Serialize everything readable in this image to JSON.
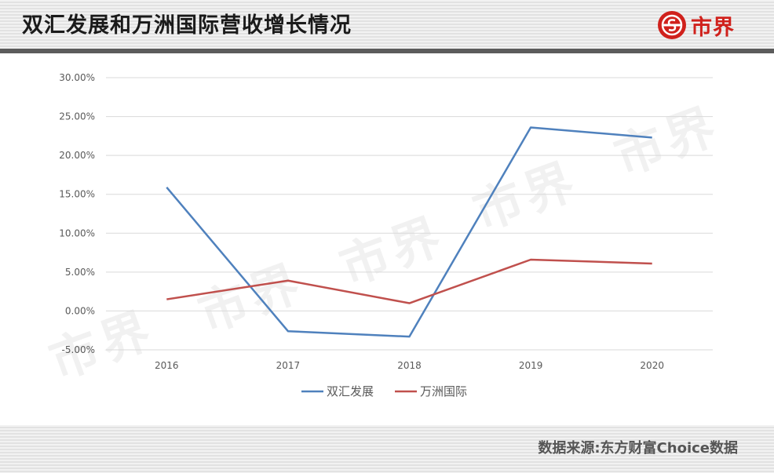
{
  "header": {
    "title": "双汇发展和万洲国际营收增长情况"
  },
  "logo": {
    "text": "市界",
    "icon": "dollar-s-icon",
    "color": "#d0211c"
  },
  "watermark": {
    "text": "市界"
  },
  "footer": {
    "source": "数据来源:东方财富Choice数据"
  },
  "chart_data": {
    "type": "line",
    "categories": [
      "2016",
      "2017",
      "2018",
      "2019",
      "2020"
    ],
    "y_ticks": [
      "30.00%",
      "25.00%",
      "20.00%",
      "15.00%",
      "10.00%",
      "5.00%",
      "0.00%",
      "-5.00%"
    ],
    "ylim": [
      -5,
      30
    ],
    "unit": "%",
    "grid": true,
    "legend_position": "bottom",
    "series": [
      {
        "name": "双汇发展",
        "color": "#4f81bd",
        "values": [
          15.9,
          -2.6,
          -3.3,
          23.6,
          22.3
        ]
      },
      {
        "name": "万洲国际",
        "color": "#c0504d",
        "values": [
          1.5,
          3.9,
          1.0,
          6.6,
          6.1
        ]
      }
    ]
  }
}
